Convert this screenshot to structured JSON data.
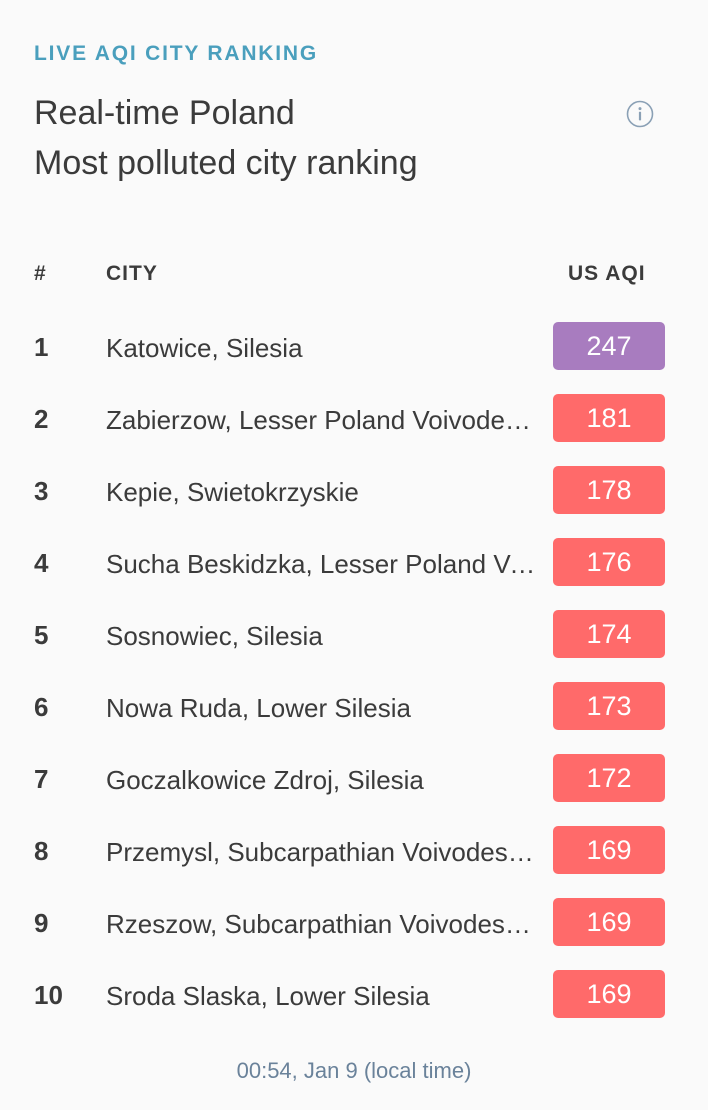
{
  "widget": {
    "eyebrow": "LIVE AQI CITY RANKING",
    "title_line1": "Real-time Poland",
    "title_line2": "Most polluted city ranking",
    "info_icon": "info-circle-icon"
  },
  "table": {
    "headers": {
      "rank": "#",
      "city": "CITY",
      "aqi": "US AQI"
    },
    "rows": [
      {
        "rank": "1",
        "city": "Katowice, Silesia",
        "aqi": "247",
        "color": "#a87cbf"
      },
      {
        "rank": "2",
        "city": "Zabierzow, Lesser Poland Voivodeship",
        "aqi": "181",
        "color": "#ff6a6a"
      },
      {
        "rank": "3",
        "city": "Kepie, Swietokrzyskie",
        "aqi": "178",
        "color": "#ff6a6a"
      },
      {
        "rank": "4",
        "city": "Sucha Beskidzka, Lesser Poland Voivodeship",
        "aqi": "176",
        "color": "#ff6a6a"
      },
      {
        "rank": "5",
        "city": "Sosnowiec, Silesia",
        "aqi": "174",
        "color": "#ff6a6a"
      },
      {
        "rank": "6",
        "city": "Nowa Ruda, Lower Silesia",
        "aqi": "173",
        "color": "#ff6a6a"
      },
      {
        "rank": "7",
        "city": "Goczalkowice Zdroj, Silesia",
        "aqi": "172",
        "color": "#ff6a6a"
      },
      {
        "rank": "8",
        "city": "Przemysl, Subcarpathian Voivodeship",
        "aqi": "169",
        "color": "#ff6a6a"
      },
      {
        "rank": "9",
        "city": "Rzeszow, Subcarpathian Voivodeship",
        "aqi": "169",
        "color": "#ff6a6a"
      },
      {
        "rank": "10",
        "city": "Sroda Slaska, Lower Silesia",
        "aqi": "169",
        "color": "#ff6a6a"
      }
    ]
  },
  "footer": {
    "timestamp": "00:54, Jan 9 (local time)"
  }
}
